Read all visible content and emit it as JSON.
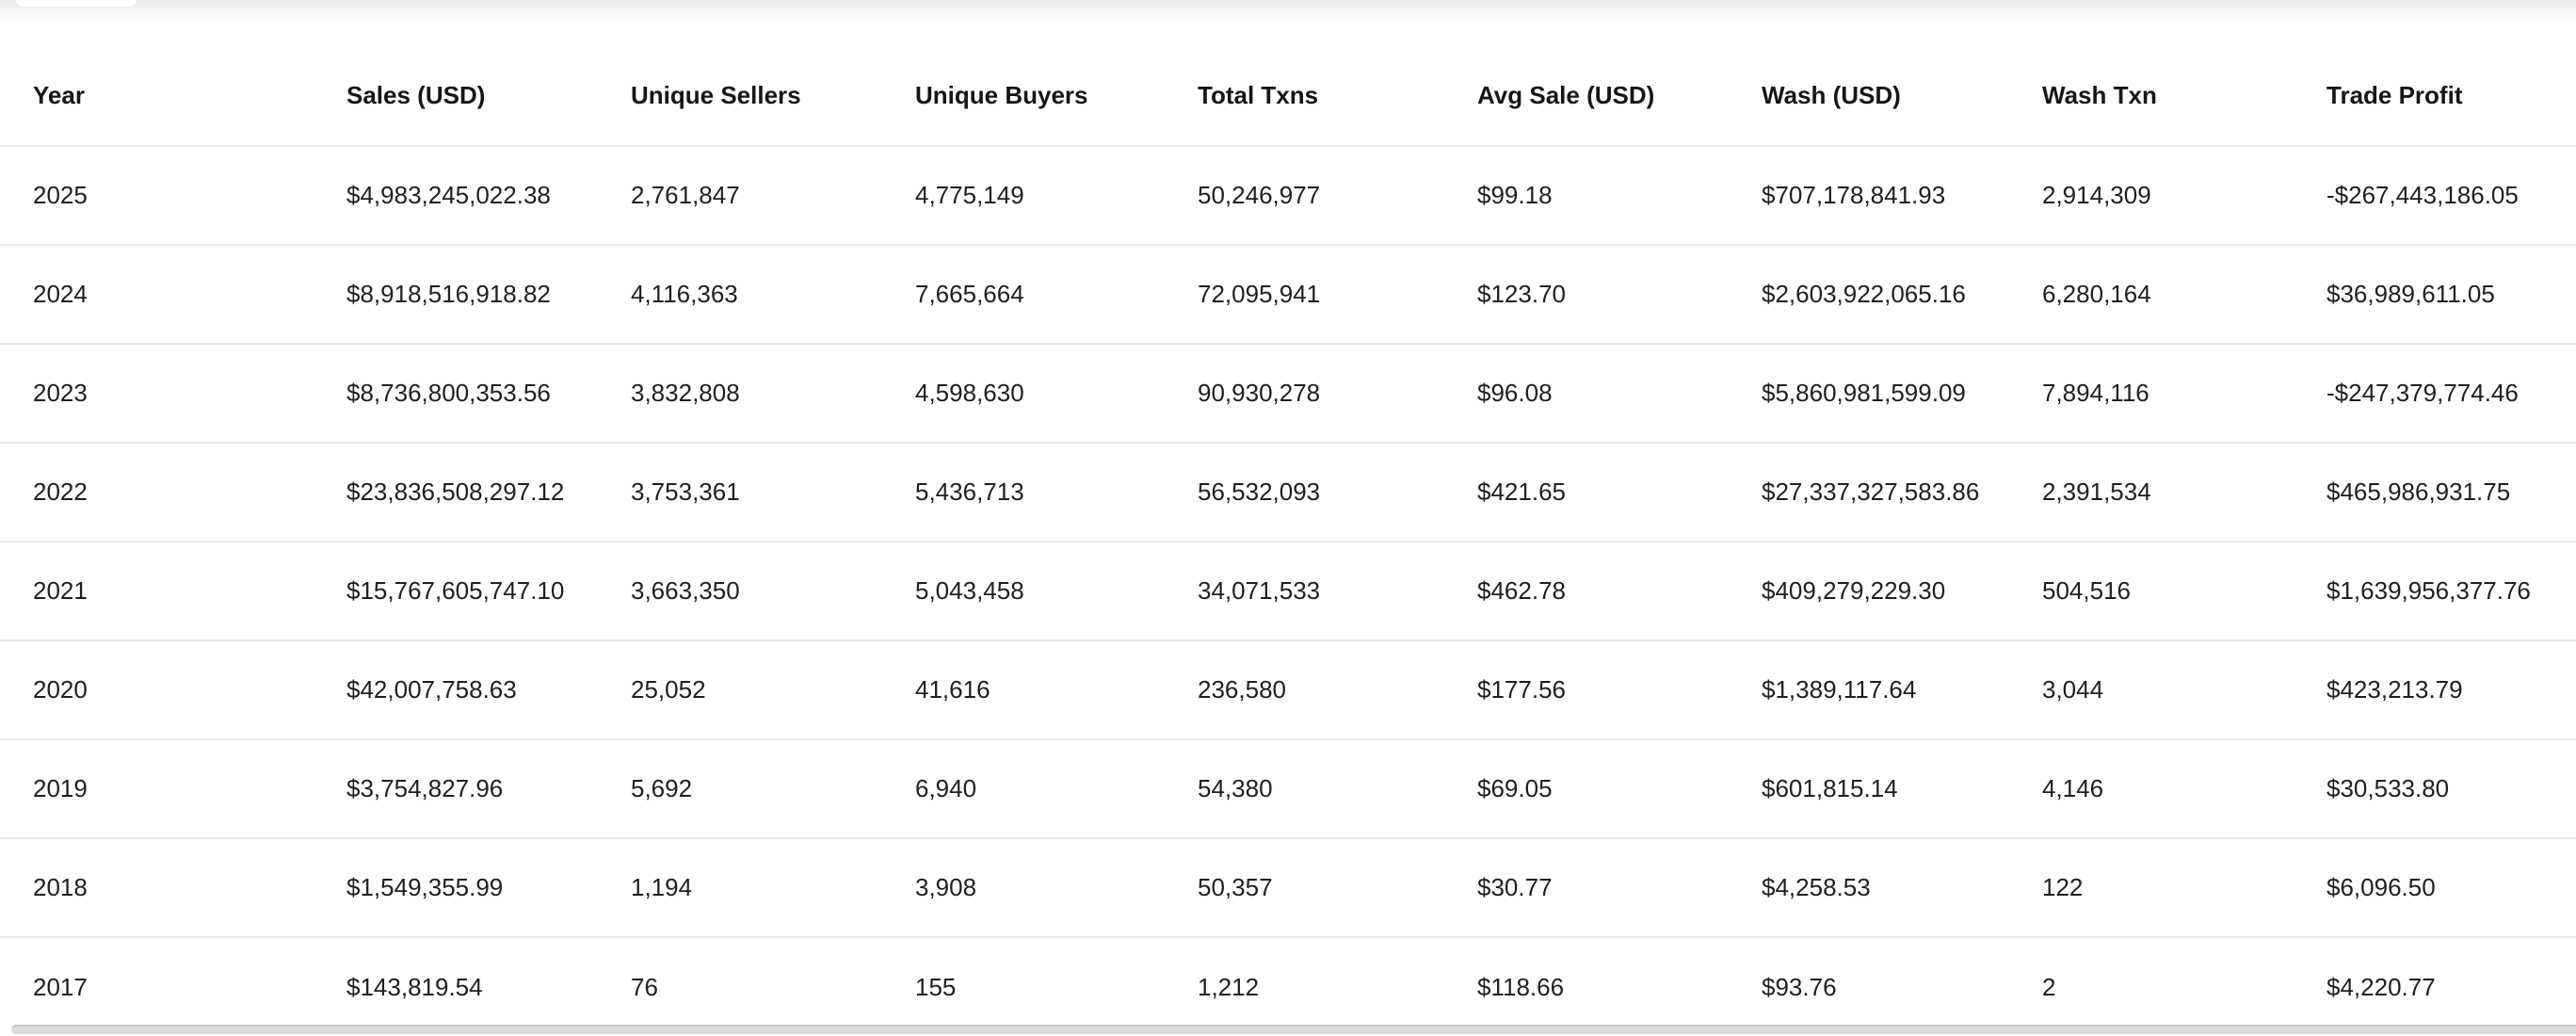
{
  "theme": {
    "text_color": "#1f1f1f",
    "header_text_color": "#161616",
    "divider_color": "#e7e7e7",
    "top_gradient_color": "#ebebeb",
    "scrollbar_color": "#dcdcdc",
    "scrollbar_edge_color": "#c6c6c6"
  },
  "table": {
    "columns": [
      {
        "key": "year",
        "label": "Year"
      },
      {
        "key": "sales-usd",
        "label": "Sales (USD)"
      },
      {
        "key": "unique-sellers",
        "label": "Unique Sellers"
      },
      {
        "key": "unique-buyers",
        "label": "Unique Buyers"
      },
      {
        "key": "total-txns",
        "label": "Total Txns"
      },
      {
        "key": "avg-sale-usd",
        "label": "Avg Sale (USD)"
      },
      {
        "key": "wash-usd",
        "label": "Wash (USD)"
      },
      {
        "key": "wash-txn",
        "label": "Wash Txn"
      },
      {
        "key": "trade-profit",
        "label": "Trade Profit"
      }
    ],
    "rows": [
      [
        "2025",
        "$4,983,245,022.38",
        "2,761,847",
        "4,775,149",
        "50,246,977",
        "$99.18",
        "$707,178,841.93",
        "2,914,309",
        "-$267,443,186.05"
      ],
      [
        "2024",
        "$8,918,516,918.82",
        "4,116,363",
        "7,665,664",
        "72,095,941",
        "$123.70",
        "$2,603,922,065.16",
        "6,280,164",
        "$36,989,611.05"
      ],
      [
        "2023",
        "$8,736,800,353.56",
        "3,832,808",
        "4,598,630",
        "90,930,278",
        "$96.08",
        "$5,860,981,599.09",
        "7,894,116",
        "-$247,379,774.46"
      ],
      [
        "2022",
        "$23,836,508,297.12",
        "3,753,361",
        "5,436,713",
        "56,532,093",
        "$421.65",
        "$27,337,327,583.86",
        "2,391,534",
        "$465,986,931.75"
      ],
      [
        "2021",
        "$15,767,605,747.10",
        "3,663,350",
        "5,043,458",
        "34,071,533",
        "$462.78",
        "$409,279,229.30",
        "504,516",
        "$1,639,956,377.76"
      ],
      [
        "2020",
        "$42,007,758.63",
        "25,052",
        "41,616",
        "236,580",
        "$177.56",
        "$1,389,117.64",
        "3,044",
        "$423,213.79"
      ],
      [
        "2019",
        "$3,754,827.96",
        "5,692",
        "6,940",
        "54,380",
        "$69.05",
        "$601,815.14",
        "4,146",
        "$30,533.80"
      ],
      [
        "2018",
        "$1,549,355.99",
        "1,194",
        "3,908",
        "50,357",
        "$30.77",
        "$4,258.53",
        "122",
        "$6,096.50"
      ],
      [
        "2017",
        "$143,819.54",
        "76",
        "155",
        "1,212",
        "$118.66",
        "$93.76",
        "2",
        "$4,220.77"
      ]
    ]
  }
}
